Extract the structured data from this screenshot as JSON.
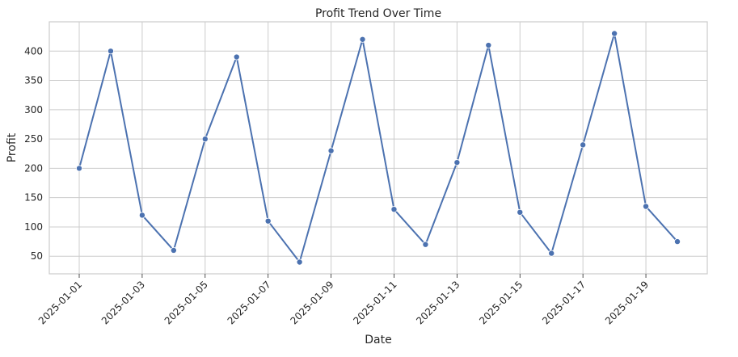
{
  "chart_data": {
    "type": "line",
    "title": "Profit Trend Over Time",
    "xlabel": "Date",
    "ylabel": "Profit",
    "x": [
      "2025-01-01",
      "2025-01-02",
      "2025-01-03",
      "2025-01-04",
      "2025-01-05",
      "2025-01-06",
      "2025-01-07",
      "2025-01-08",
      "2025-01-09",
      "2025-01-10",
      "2025-01-11",
      "2025-01-12",
      "2025-01-13",
      "2025-01-14",
      "2025-01-15",
      "2025-01-16",
      "2025-01-17",
      "2025-01-18",
      "2025-01-19",
      "2025-01-20"
    ],
    "series": [
      {
        "color": "#4c72b0",
        "values": [
          200,
          400,
          120,
          60,
          250,
          390,
          110,
          40,
          230,
          420,
          130,
          70,
          210,
          410,
          125,
          55,
          240,
          430,
          135,
          75
        ]
      }
    ],
    "xticks": [
      "2025-01-01",
      "2025-01-03",
      "2025-01-05",
      "2025-01-07",
      "2025-01-09",
      "2025-01-11",
      "2025-01-13",
      "2025-01-15",
      "2025-01-17",
      "2025-01-19"
    ],
    "yticks": [
      50,
      100,
      150,
      200,
      250,
      300,
      350,
      400
    ],
    "ylim": [
      20,
      450
    ],
    "xlim": [
      "2024-12-31T01:12",
      "2025-01-20T22:48"
    ],
    "grid": true,
    "legend": "none"
  }
}
